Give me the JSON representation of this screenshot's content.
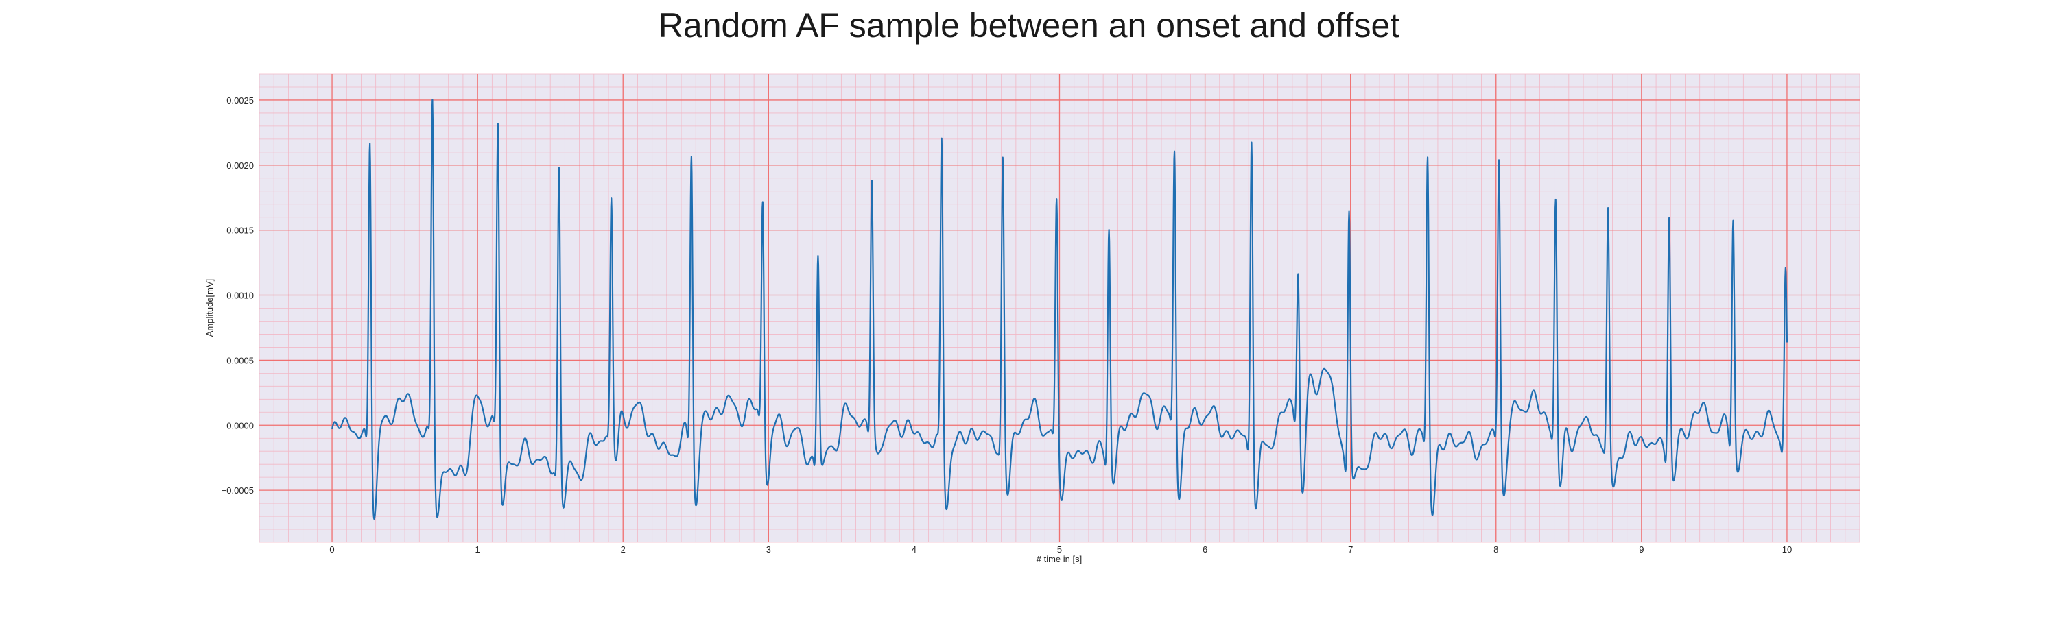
{
  "chart_data": {
    "type": "line",
    "title": "Random AF sample between an onset and offset",
    "xlabel": "# time in [s]",
    "ylabel": "Amplitude[mV]",
    "xlim": [
      -0.5,
      10.5
    ],
    "ylim": [
      -0.0009,
      0.0027
    ],
    "x_ticks": [
      0,
      1,
      2,
      3,
      4,
      5,
      6,
      7,
      8,
      9,
      10
    ],
    "y_ticks": [
      -0.0005,
      0.0,
      0.0005,
      0.001,
      0.0015,
      0.002,
      0.0025
    ],
    "y_tick_labels": [
      "−0.0005",
      "0.0000",
      "0.0005",
      "0.0010",
      "0.0015",
      "0.0020",
      "0.0025"
    ],
    "grid": true,
    "colors": {
      "line": "#1f6fb2",
      "grid_major": "#f07070",
      "grid_minor": "#f2b8c6",
      "background": "#eae7f2"
    },
    "series": [
      {
        "x_start": 0,
        "x_end": 10,
        "baseline_wander": [
          [
            0,
            -8e-05
          ],
          [
            0.1,
            5e-05
          ],
          [
            0.2,
            -0.00012
          ],
          [
            0.5,
            0.0001
          ],
          [
            0.9,
            -0.00045
          ],
          [
            1.0,
            0.00015
          ],
          [
            1.3,
            -0.0003
          ],
          [
            1.7,
            -0.00035
          ],
          [
            2.0,
            0.0001
          ],
          [
            2.3,
            -0.0002
          ],
          [
            2.6,
            5e-05
          ],
          [
            2.9,
            0.00012
          ],
          [
            3.3,
            -0.00025
          ],
          [
            3.6,
            0.0
          ],
          [
            4.0,
            -0.0001
          ],
          [
            4.4,
            -0.00015
          ],
          [
            4.8,
            0.0
          ],
          [
            5.2,
            -0.0003
          ],
          [
            5.6,
            0.0001
          ],
          [
            6.0,
            0.0
          ],
          [
            6.4,
            -0.00015
          ],
          [
            6.8,
            0.00035
          ],
          [
            7.0,
            -0.0003
          ],
          [
            7.4,
            -0.0001
          ],
          [
            7.8,
            -0.0002
          ],
          [
            8.2,
            0.0001
          ],
          [
            8.6,
            -0.0001
          ],
          [
            9.0,
            -0.0002
          ],
          [
            9.4,
            0.0
          ],
          [
            9.8,
            -0.0001
          ],
          [
            10.0,
            -5e-05
          ]
        ],
        "qrs_complexes": [
          {
            "t": 0.26,
            "r": 0.00237,
            "s": -0.00074
          },
          {
            "t": 0.69,
            "r": 0.00254,
            "s": -0.00062
          },
          {
            "t": 1.14,
            "r": 0.00242,
            "s": -0.00063
          },
          {
            "t": 1.56,
            "r": 0.00205,
            "s": -0.00061
          },
          {
            "t": 1.92,
            "r": 0.0018,
            "s": -0.00038
          },
          {
            "t": 2.47,
            "r": 0.00226,
            "s": -0.00068
          },
          {
            "t": 2.96,
            "r": 0.00186,
            "s": -0.00047
          },
          {
            "t": 3.34,
            "r": 0.00137,
            "s": -0.00041
          },
          {
            "t": 3.71,
            "r": 0.00191,
            "s": -0.00025
          },
          {
            "t": 4.19,
            "r": 0.00222,
            "s": -0.00061
          },
          {
            "t": 4.61,
            "r": 0.00209,
            "s": -0.00066
          },
          {
            "t": 4.98,
            "r": 0.00174,
            "s": -0.00048
          },
          {
            "t": 5.34,
            "r": 0.00161,
            "s": -0.00047
          },
          {
            "t": 5.79,
            "r": 0.00222,
            "s": -0.00058
          },
          {
            "t": 6.32,
            "r": 0.0024,
            "s": -0.00071
          },
          {
            "t": 6.64,
            "r": 0.00139,
            "s": -0.00066
          },
          {
            "t": 6.99,
            "r": 0.00174,
            "s": -0.00055
          },
          {
            "t": 7.53,
            "r": 0.00215,
            "s": -0.00067
          },
          {
            "t": 8.02,
            "r": 0.00213,
            "s": -0.0006
          },
          {
            "t": 8.41,
            "r": 0.00185,
            "s": -0.00053
          },
          {
            "t": 8.77,
            "r": 0.00165,
            "s": -0.00052
          },
          {
            "t": 9.19,
            "r": 0.00176,
            "s": -0.00058
          },
          {
            "t": 9.63,
            "r": 0.00172,
            "s": -0.00038
          },
          {
            "t": 9.99,
            "r": 0.00122,
            "s": -5e-05
          }
        ]
      }
    ]
  }
}
